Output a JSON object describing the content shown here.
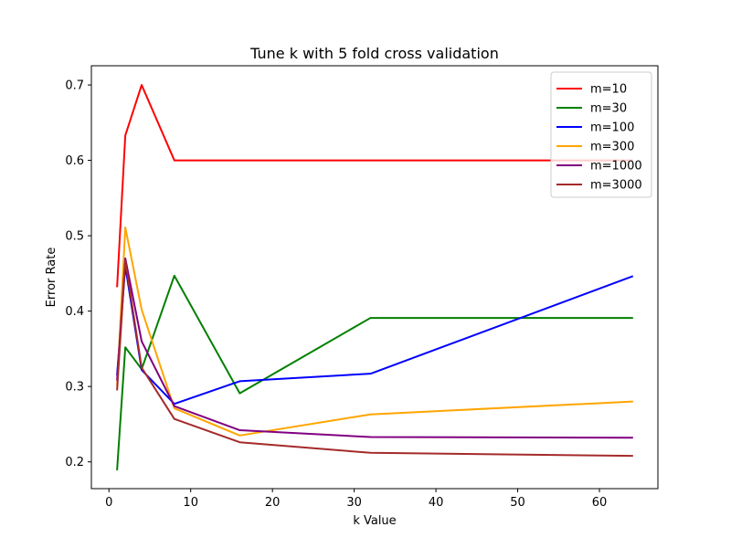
{
  "chart_data": {
    "type": "line",
    "title": "Tune k with 5 fold cross validation",
    "xlabel": "k Value",
    "ylabel": "Error Rate",
    "x": [
      1,
      2,
      4,
      8,
      16,
      32,
      64
    ],
    "xlim": [
      -2.15,
      67.15
    ],
    "ylim": [
      0.1645,
      0.7255
    ],
    "xticks": [
      0,
      10,
      20,
      30,
      40,
      50,
      60
    ],
    "yticks": [
      0.2,
      0.3,
      0.4,
      0.5,
      0.6,
      0.7
    ],
    "ytick_labels": [
      "0.2",
      "0.3",
      "0.4",
      "0.5",
      "0.6",
      "0.7"
    ],
    "grid": false,
    "legend_position": "top-right",
    "series": [
      {
        "name": "m=10",
        "color": "#ff0000",
        "values": [
          0.433,
          0.633,
          0.7,
          0.6,
          0.6,
          0.6,
          0.6
        ]
      },
      {
        "name": "m=30",
        "color": "#008000",
        "values": [
          0.19,
          0.352,
          0.323,
          0.447,
          0.291,
          0.391,
          0.391
        ]
      },
      {
        "name": "m=100",
        "color": "#0000ff",
        "values": [
          0.316,
          0.46,
          0.322,
          0.277,
          0.307,
          0.317,
          0.446
        ]
      },
      {
        "name": "m=300",
        "color": "#ffa500",
        "values": [
          0.302,
          0.511,
          0.402,
          0.271,
          0.235,
          0.263,
          0.28
        ]
      },
      {
        "name": "m=1000",
        "color": "#800080",
        "values": [
          0.309,
          0.47,
          0.36,
          0.274,
          0.242,
          0.233,
          0.232
        ]
      },
      {
        "name": "m=3000",
        "color": "#a52a2a",
        "values": [
          0.296,
          0.467,
          0.325,
          0.257,
          0.226,
          0.212,
          0.208
        ]
      }
    ]
  }
}
